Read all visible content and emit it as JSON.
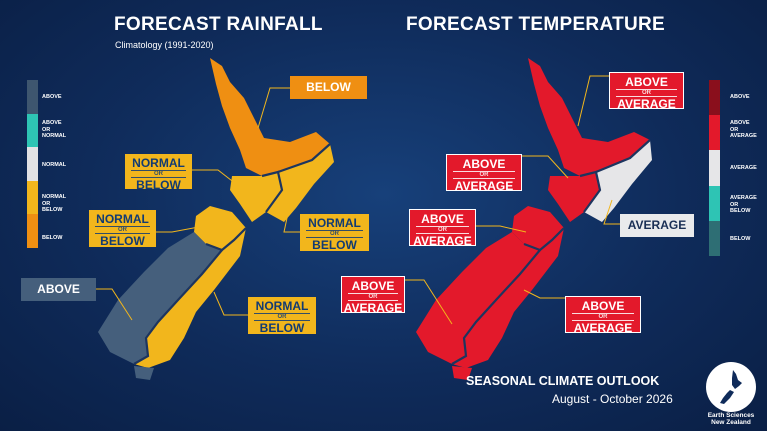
{
  "rainfall": {
    "title": "FORECAST RAINFALL",
    "subtitle": "Climatology (1991-2020)",
    "labels": {
      "north_top": "BELOW",
      "north_west_big": "NORMAL",
      "north_west_or": "OR",
      "north_west_small": "BELOW",
      "north_east_big": "NORMAL",
      "north_east_or": "OR",
      "north_east_small": "BELOW",
      "south_north_big": "NORMAL",
      "south_north_or": "OR",
      "south_north_small": "BELOW",
      "south_west": "ABOVE",
      "south_east_big": "NORMAL",
      "south_east_or": "OR",
      "south_east_small": "BELOW"
    },
    "legend": {
      "items": [
        "ABOVE",
        "ABOVE\nOR\nNORMAL",
        "NORMAL",
        "NORMAL\nOR\nBELOW",
        "BELOW"
      ],
      "colors": [
        "#3e566f",
        "#2ec4b4",
        "#e2e2e4",
        "#f2b61c",
        "#ef8f12"
      ]
    }
  },
  "temperature": {
    "title": "FORECAST TEMPERATURE",
    "labels": {
      "north_top_big": "ABOVE",
      "north_top_or": "OR",
      "north_top_small": "AVERAGE",
      "north_west_big": "ABOVE",
      "north_west_or": "OR",
      "north_west_small": "AVERAGE",
      "north_east": "AVERAGE",
      "south_north_big": "ABOVE",
      "south_north_or": "OR",
      "south_north_small": "AVERAGE",
      "south_west_big": "ABOVE",
      "south_west_or": "OR",
      "south_west_small": "AVERAGE",
      "south_east_big": "ABOVE",
      "south_east_or": "OR",
      "south_east_small": "AVERAGE"
    },
    "legend": {
      "items": [
        "ABOVE",
        "ABOVE\nOR\nAVERAGE",
        "AVERAGE",
        "AVERAGE\nOR\nBELOW",
        "BELOW"
      ],
      "colors": [
        "#8a0f1c",
        "#e3192b",
        "#e6e6e8",
        "#2ec4b4",
        "#2e6e74"
      ]
    }
  },
  "colors": {
    "orange": "#ef8f12",
    "yellow": "#f2b61c",
    "slate": "#455f7c",
    "red": "#e3192b",
    "light": "#e6e6e8",
    "navy": "#0f2b5a"
  },
  "footer": {
    "title": "SEASONAL CLIMATE OUTLOOK",
    "period": "August - October 2026",
    "org_line1": "Earth Sciences",
    "org_line2": "New Zealand"
  }
}
